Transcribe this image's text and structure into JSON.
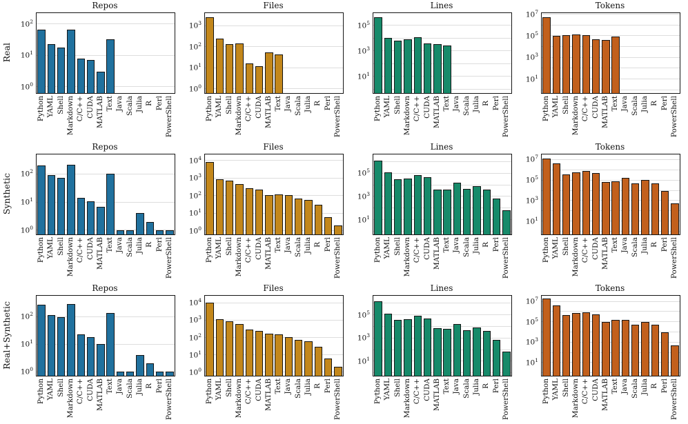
{
  "figure": {
    "row_labels": [
      "Real",
      "Synthetic",
      "Real+Synthetic"
    ],
    "col_titles": [
      "Repos",
      "Files",
      "Lines",
      "Tokens"
    ],
    "categories": [
      "Python",
      "YAML",
      "Shell",
      "Markdown",
      "C/C++",
      "CUDA",
      "MATLAB",
      "Text",
      "Java",
      "Scala",
      "Julia",
      "R",
      "Perl",
      "PowerShell"
    ],
    "colors": {
      "repos": "#20719E",
      "files": "#C3871B",
      "lines": "#178A6A",
      "tokens": "#C2601D"
    }
  },
  "chart_data": [
    {
      "type": "bar",
      "row": "Real",
      "title": "Repos",
      "yscale": "log",
      "color_key": "repos",
      "tick_exps": [
        0,
        1,
        2
      ],
      "ymin_exp": -0.2,
      "ymax_exp": 2.35,
      "values": [
        65,
        23,
        18,
        65,
        8,
        7,
        3,
        32,
        0,
        0,
        0,
        0,
        0,
        0
      ]
    },
    {
      "type": "bar",
      "row": "Real",
      "title": "Files",
      "yscale": "log",
      "color_key": "files",
      "tick_exps": [
        0,
        1,
        2,
        3
      ],
      "ymin_exp": -0.2,
      "ymax_exp": 3.6,
      "values": [
        2500,
        250,
        135,
        140,
        16,
        12,
        55,
        42,
        0,
        0,
        0,
        0,
        0,
        0
      ]
    },
    {
      "type": "bar",
      "row": "Real",
      "title": "Lines",
      "yscale": "log",
      "color_key": "lines",
      "tick_exps": [
        1,
        3,
        5
      ],
      "ymin_exp": -0.3,
      "ymax_exp": 5.95,
      "values": [
        400000,
        10000,
        6000,
        8000,
        11000,
        4000,
        3500,
        2500,
        0,
        0,
        0,
        0,
        0,
        0
      ]
    },
    {
      "type": "bar",
      "row": "Real",
      "title": "Tokens",
      "yscale": "log",
      "color_key": "tokens",
      "tick_exps": [
        1,
        3,
        5,
        7
      ],
      "ymin_exp": -0.3,
      "ymax_exp": 7.1,
      "values": [
        5000000,
        100000,
        110000,
        130000,
        110000,
        50000,
        40000,
        80000,
        0,
        0,
        0,
        0,
        0,
        0
      ]
    },
    {
      "type": "bar",
      "row": "Synthetic",
      "title": "Repos",
      "yscale": "log",
      "color_key": "repos",
      "tick_exps": [
        0,
        1,
        2
      ],
      "ymin_exp": -0.15,
      "ymax_exp": 2.7,
      "values": [
        200,
        90,
        75,
        210,
        14,
        11,
        7,
        105,
        1,
        1,
        4,
        2,
        1,
        1
      ]
    },
    {
      "type": "bar",
      "row": "Synthetic",
      "title": "Files",
      "yscale": "log",
      "color_key": "files",
      "tick_exps": [
        0,
        1,
        2,
        3,
        4
      ],
      "ymin_exp": -0.2,
      "ymax_exp": 4.35,
      "values": [
        8000,
        900,
        750,
        450,
        280,
        220,
        110,
        115,
        105,
        70,
        60,
        30,
        6,
        2
      ]
    },
    {
      "type": "bar",
      "row": "Synthetic",
      "title": "Lines",
      "yscale": "log",
      "color_key": "lines",
      "tick_exps": [
        1,
        3,
        5
      ],
      "ymin_exp": -0.25,
      "ymax_exp": 6.6,
      "values": [
        1200000,
        110000,
        30000,
        32000,
        70000,
        45000,
        4000,
        4000,
        16000,
        4500,
        8000,
        4000,
        700,
        70
      ]
    },
    {
      "type": "bar",
      "row": "Synthetic",
      "title": "Tokens",
      "yscale": "log",
      "color_key": "tokens",
      "tick_exps": [
        1,
        3,
        5,
        7
      ],
      "ymin_exp": -0.3,
      "ymax_exp": 7.5,
      "values": [
        13000000,
        4000000,
        350000,
        600000,
        800000,
        500000,
        60000,
        70000,
        160000,
        50000,
        100000,
        50000,
        9000,
        500
      ]
    },
    {
      "type": "bar",
      "row": "Real+Synthetic",
      "title": "Repos",
      "yscale": "log",
      "color_key": "repos",
      "tick_exps": [
        0,
        1,
        2
      ],
      "ymin_exp": -0.15,
      "ymax_exp": 2.75,
      "values": [
        265,
        113,
        93,
        275,
        22,
        18,
        10,
        137,
        1,
        1,
        4,
        2,
        1,
        1
      ]
    },
    {
      "type": "bar",
      "row": "Real+Synthetic",
      "title": "Files",
      "yscale": "log",
      "color_key": "files",
      "tick_exps": [
        0,
        1,
        2,
        3,
        4
      ],
      "ymin_exp": -0.2,
      "ymax_exp": 4.4,
      "values": [
        10500,
        1150,
        885,
        590,
        296,
        232,
        165,
        157,
        105,
        70,
        60,
        30,
        6,
        2
      ]
    },
    {
      "type": "bar",
      "row": "Real+Synthetic",
      "title": "Lines",
      "yscale": "log",
      "color_key": "lines",
      "tick_exps": [
        1,
        3,
        5
      ],
      "ymin_exp": -0.25,
      "ymax_exp": 6.65,
      "values": [
        1600000,
        120000,
        36000,
        40000,
        81000,
        49000,
        7500,
        6500,
        16000,
        4500,
        8000,
        4000,
        700,
        70
      ]
    },
    {
      "type": "bar",
      "row": "Real+Synthetic",
      "title": "Tokens",
      "yscale": "log",
      "color_key": "tokens",
      "tick_exps": [
        1,
        3,
        5,
        7
      ],
      "ymin_exp": -0.3,
      "ymax_exp": 7.55,
      "values": [
        18000000,
        4100000,
        460000,
        730000,
        910000,
        550000,
        100000,
        150000,
        160000,
        50000,
        100000,
        50000,
        9000,
        500
      ]
    }
  ]
}
